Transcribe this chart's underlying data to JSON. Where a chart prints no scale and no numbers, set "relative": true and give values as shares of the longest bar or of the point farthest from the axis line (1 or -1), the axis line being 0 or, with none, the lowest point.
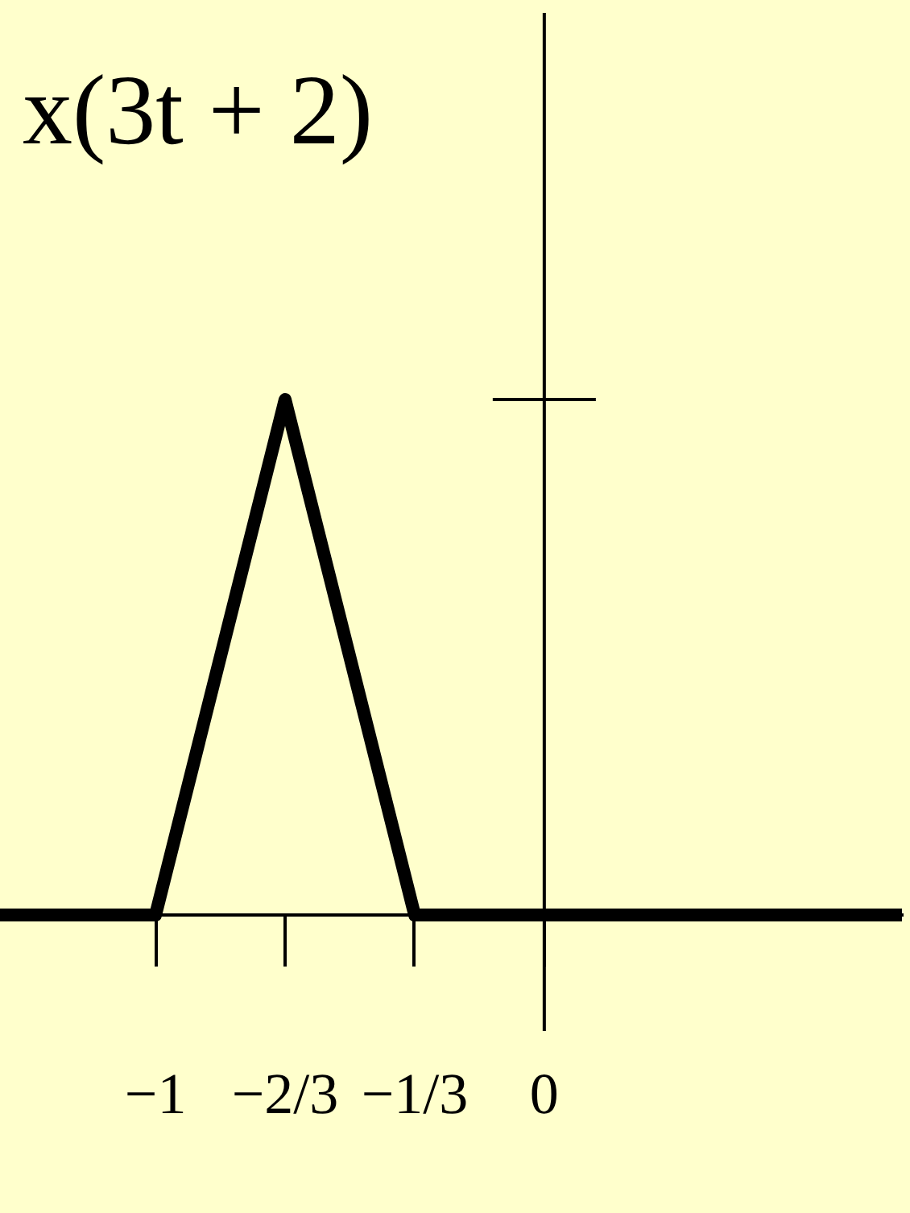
{
  "chart_data": {
    "type": "line",
    "title": "x(3t + 2)",
    "x": [
      -1.4,
      -1,
      -0.6667,
      -0.3333,
      0.92
    ],
    "series": [
      {
        "color": "#000000",
        "values": [
          0,
          0,
          1,
          0,
          0
        ]
      }
    ],
    "relative": true,
    "xlim": [
      -1.4,
      0.92
    ],
    "xticks": [
      {
        "value": -1,
        "label": "−1"
      },
      {
        "value": -0.6667,
        "label": "−2/3"
      },
      {
        "value": -0.3333,
        "label": "−1/3"
      },
      0
    ],
    "marker": "none"
  }
}
